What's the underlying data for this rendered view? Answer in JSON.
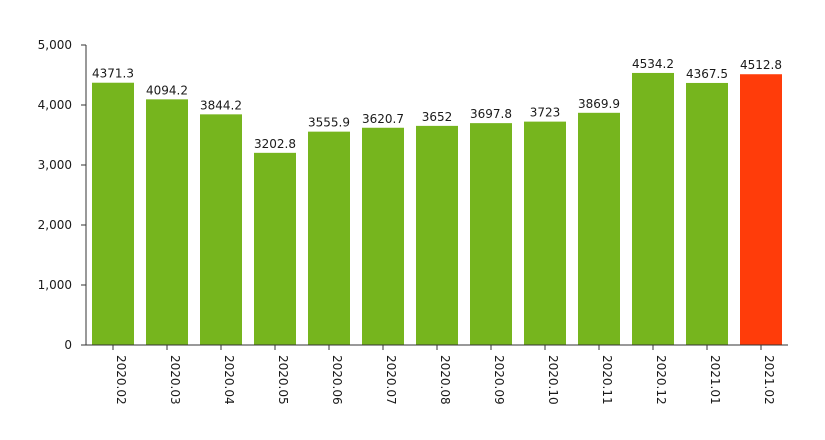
{
  "chart_data": {
    "type": "bar",
    "categories": [
      "2020.02",
      "2020.03",
      "2020.04",
      "2020.05",
      "2020.06",
      "2020.07",
      "2020.08",
      "2020.09",
      "2020.10",
      "2020.11",
      "2020.12",
      "2021.01",
      "2021.02"
    ],
    "values": [
      4371.3,
      4094.2,
      3844.2,
      3202.8,
      3555.9,
      3620.7,
      3652,
      3697.8,
      3723,
      3869.9,
      4534.2,
      4367.5,
      4512.8
    ],
    "value_labels": [
      "4371.3",
      "4094.2",
      "3844.2",
      "3202.8",
      "3555.9",
      "3620.7",
      "3652",
      "3697.8",
      "3723",
      "3869.9",
      "4534.2",
      "4367.5",
      "4512.8"
    ],
    "y_ticks": [
      0,
      1000,
      2000,
      3000,
      4000,
      5000
    ],
    "y_tick_labels": [
      "0",
      "1,000",
      "2,000",
      "3,000",
      "4,000",
      "5,000"
    ],
    "ylim": [
      0,
      5000
    ],
    "grid": false,
    "legend": "none",
    "bar_color": "#76b51e",
    "highlight_color": "#ff3c0a",
    "highlight_index": 12
  }
}
